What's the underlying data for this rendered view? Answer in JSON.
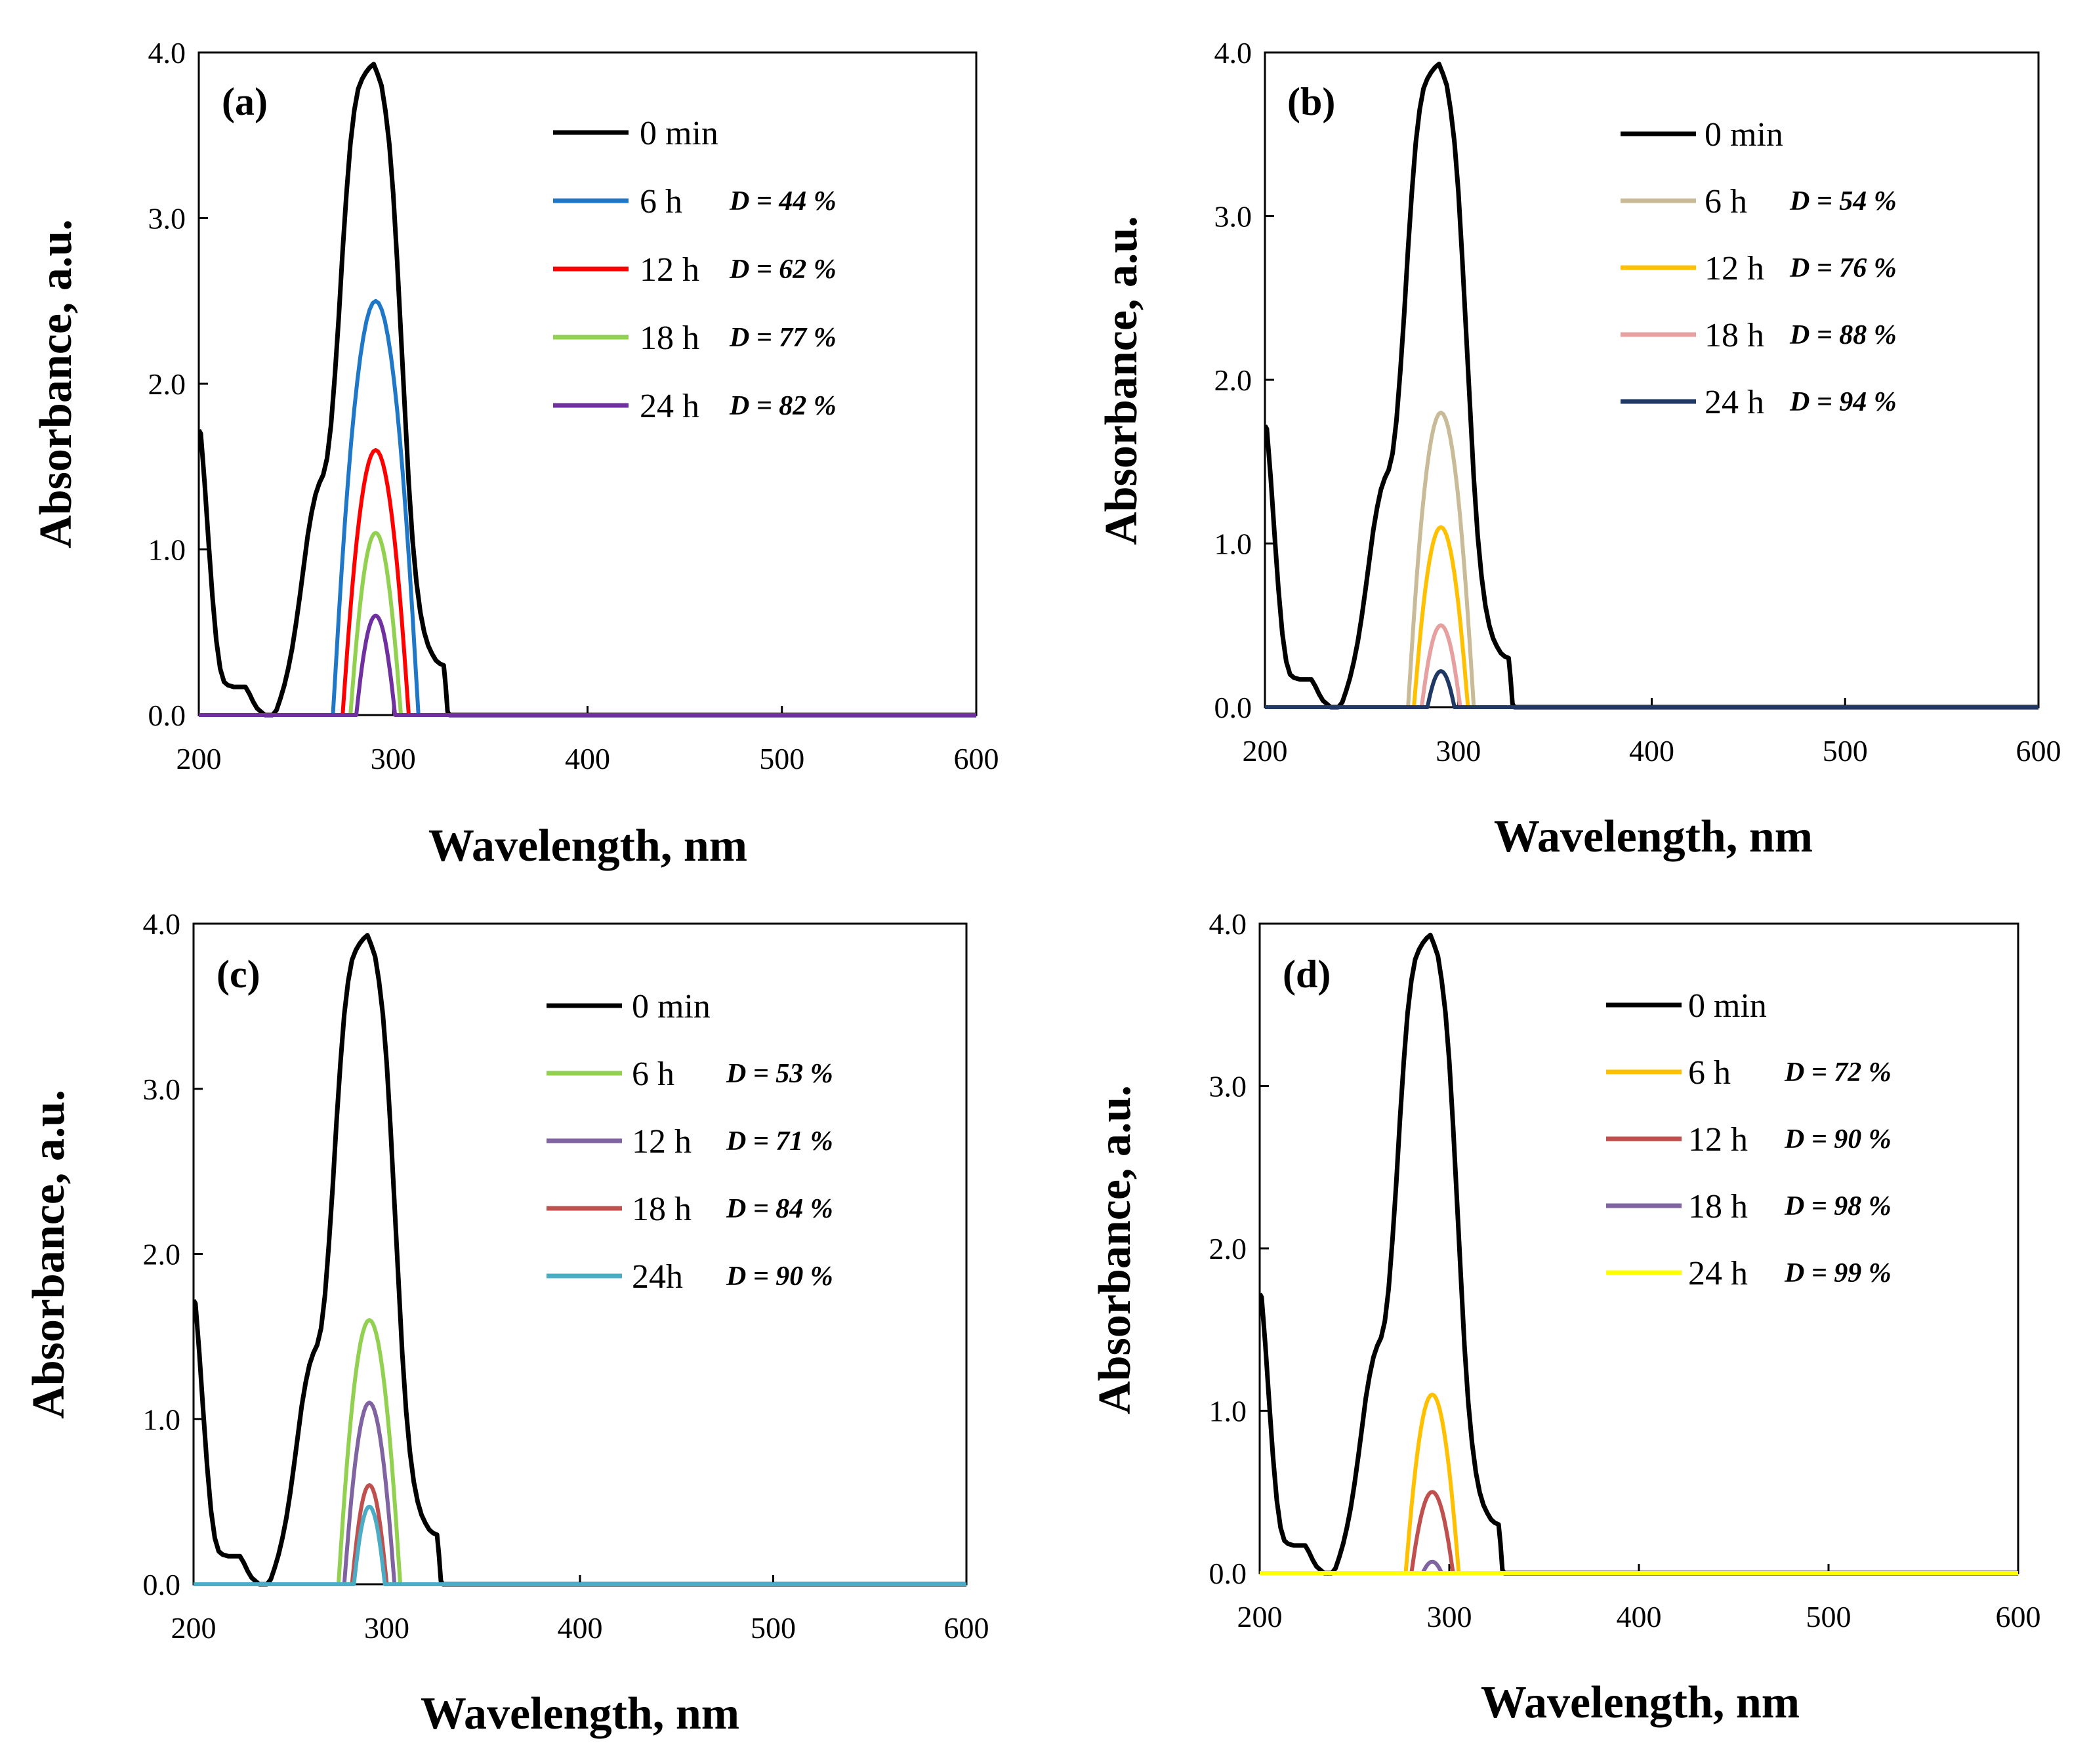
{
  "chart_data": [
    {
      "type": "line",
      "panel_label": "(a)",
      "xlabel": "Wavelength, nm",
      "ylabel": "Absorbance, a.u.",
      "xlim": [
        200,
        600
      ],
      "ylim": [
        0,
        4
      ],
      "xticks": [
        "200",
        "300",
        "400",
        "500",
        "600"
      ],
      "yticks": [
        "0.0",
        "1.0",
        "2.0",
        "3.0",
        "4.0"
      ],
      "grid": false,
      "legend_position": "top-right",
      "series": [
        {
          "name": "0 min",
          "annotation": "",
          "color": "#000000",
          "peak": 3.93
        },
        {
          "name": "6 h",
          "annotation": "D = 44 %",
          "color": "#1F77C8",
          "peak": 2.5
        },
        {
          "name": "12 h",
          "annotation": "D = 62 %",
          "color": "#FF0000",
          "peak": 1.6
        },
        {
          "name": "18 h",
          "annotation": "D = 77 %",
          "color": "#92D050",
          "peak": 1.1
        },
        {
          "name": "24 h",
          "annotation": "D = 82 %",
          "color": "#7030A0",
          "peak": 0.6
        }
      ]
    },
    {
      "type": "line",
      "panel_label": "(b)",
      "xlabel": "Wavelength, nm",
      "ylabel": "Absorbance, a.u.",
      "xlim": [
        200,
        600
      ],
      "ylim": [
        0,
        4
      ],
      "xticks": [
        "200",
        "300",
        "400",
        "500",
        "600"
      ],
      "yticks": [
        "0.0",
        "1.0",
        "2.0",
        "3.0",
        "4.0"
      ],
      "grid": false,
      "legend_position": "top-right",
      "series": [
        {
          "name": "0 min",
          "annotation": "",
          "color": "#000000",
          "peak": 3.93
        },
        {
          "name": "6 h",
          "annotation": "D = 54 %",
          "color": "#C9BB98",
          "peak": 1.8
        },
        {
          "name": "12 h",
          "annotation": "D = 76 %",
          "color": "#FFC000",
          "peak": 1.1
        },
        {
          "name": "18 h",
          "annotation": "D = 88 %",
          "color": "#E6A0A0",
          "peak": 0.5
        },
        {
          "name": "24 h",
          "annotation": "D = 94 %",
          "color": "#1F3864",
          "peak": 0.22
        }
      ]
    },
    {
      "type": "line",
      "panel_label": "(c)",
      "xlabel": "Wavelength, nm",
      "ylabel": "Absorbance, a.u.",
      "xlim": [
        200,
        600
      ],
      "ylim": [
        0,
        4
      ],
      "xticks": [
        "200",
        "300",
        "400",
        "500",
        "600"
      ],
      "yticks": [
        "0.0",
        "1.0",
        "2.0",
        "3.0",
        "4.0"
      ],
      "grid": false,
      "legend_position": "top-right",
      "series": [
        {
          "name": "0 min",
          "annotation": "",
          "color": "#000000",
          "peak": 3.93
        },
        {
          "name": "6 h",
          "annotation": "D = 53 %",
          "color": "#92D050",
          "peak": 1.6
        },
        {
          "name": "12 h",
          "annotation": "D = 71 %",
          "color": "#8064A2",
          "peak": 1.1
        },
        {
          "name": "18 h",
          "annotation": "D = 84 %",
          "color": "#C0504D",
          "peak": 0.6
        },
        {
          "name": "24h",
          "annotation": "D = 90 %",
          "color": "#4BACC6",
          "peak": 0.47
        }
      ]
    },
    {
      "type": "line",
      "panel_label": "(d)",
      "xlabel": "Wavelength, nm",
      "ylabel": "Absorbance, a.u.",
      "xlim": [
        200,
        600
      ],
      "ylim": [
        0,
        4
      ],
      "xticks": [
        "200",
        "300",
        "400",
        "500",
        "600"
      ],
      "yticks": [
        "0.0",
        "1.0",
        "2.0",
        "3.0",
        "4.0"
      ],
      "grid": false,
      "legend_position": "top-right",
      "series": [
        {
          "name": "0 min",
          "annotation": "",
          "color": "#000000",
          "peak": 3.93
        },
        {
          "name": "6 h",
          "annotation": "D = 72 %",
          "color": "#FFC000",
          "peak": 1.1
        },
        {
          "name": "12 h",
          "annotation": "D = 90 %",
          "color": "#C0504D",
          "peak": 0.5
        },
        {
          "name": "18 h",
          "annotation": "D = 98 %",
          "color": "#8064A2",
          "peak": 0.07
        },
        {
          "name": "24 h",
          "annotation": "D = 99 %",
          "color": "#FFFF00",
          "peak": 0.0
        }
      ]
    }
  ]
}
